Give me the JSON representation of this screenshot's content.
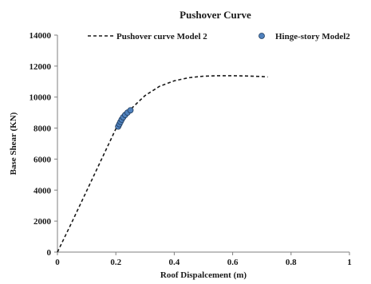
{
  "chart_data": {
    "type": "scatter",
    "title": "Pushover Curve",
    "xlabel": "Roof Dispalcement (m)",
    "ylabel": "Base Shear (KN)",
    "xlim": [
      0,
      1
    ],
    "ylim": [
      0,
      14000
    ],
    "x_ticks": [
      0,
      0.2,
      0.4,
      0.6,
      0.8,
      1
    ],
    "x_tick_labels": [
      "0",
      "0.2",
      "0.4",
      "0.6",
      "0.8",
      "1"
    ],
    "y_ticks": [
      0,
      2000,
      4000,
      6000,
      8000,
      10000,
      12000,
      14000
    ],
    "y_tick_labels": [
      "0",
      "2000",
      "4000",
      "6000",
      "8000",
      "10000",
      "12000",
      "14000"
    ],
    "grid": false,
    "legend_position": "top",
    "series": [
      {
        "name": "Pushover curve Model 2",
        "kind": "line",
        "style": "dashed",
        "color": "#1a1a1a",
        "x": [
          0,
          0.05,
          0.1,
          0.15,
          0.2,
          0.22,
          0.25,
          0.28,
          0.3,
          0.35,
          0.4,
          0.45,
          0.5,
          0.55,
          0.6,
          0.65,
          0.7,
          0.72
        ],
        "y": [
          0,
          1950,
          3950,
          5950,
          7950,
          8500,
          9200,
          9750,
          10100,
          10700,
          11050,
          11250,
          11350,
          11380,
          11380,
          11360,
          11330,
          11300
        ]
      },
      {
        "name": "Hinge-story Model2",
        "kind": "scatter",
        "color": "#4f81bd",
        "x": [
          0.208,
          0.212,
          0.216,
          0.22,
          0.225,
          0.232,
          0.24,
          0.25
        ],
        "y": [
          8100,
          8250,
          8400,
          8550,
          8700,
          8850,
          9000,
          9150
        ]
      }
    ]
  }
}
